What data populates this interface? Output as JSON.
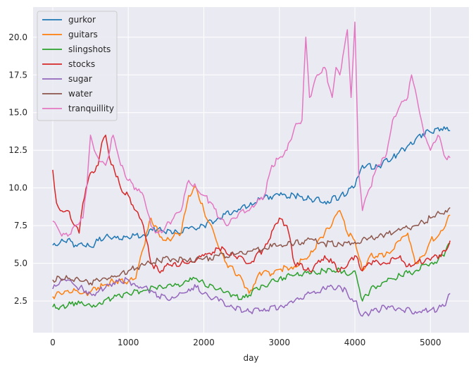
{
  "chart_data": {
    "type": "line",
    "title": "",
    "xlabel": "day",
    "ylabel": "",
    "xlim": [
      -260,
      5510
    ],
    "ylim": [
      0.4,
      22.0
    ],
    "xticks": [
      0,
      1000,
      2000,
      3000,
      4000,
      5000
    ],
    "xtick_labels": [
      "0",
      "1000",
      "2000",
      "3000",
      "4000",
      "5000"
    ],
    "yticks": [
      2.5,
      5.0,
      7.5,
      10.0,
      12.5,
      15.0,
      17.5,
      20.0
    ],
    "ytick_labels": [
      "2.5",
      "5.0",
      "7.5",
      "10.0",
      "12.5",
      "15.0",
      "17.5",
      "20.0"
    ],
    "grid": true,
    "background": "#eaeaf2",
    "legend_position": "upper left",
    "series": [
      {
        "name": "gurkor",
        "color": "#1f77b4",
        "x": [
          0,
          100,
          200,
          300,
          400,
          500,
          600,
          700,
          800,
          900,
          1000,
          1200,
          1400,
          1600,
          1800,
          2000,
          2200,
          2400,
          2600,
          2800,
          3000,
          3200,
          3400,
          3600,
          3800,
          4000,
          4050,
          4100,
          4300,
          4500,
          4700,
          4800,
          4900,
          5000,
          5100,
          5200,
          5260
        ],
        "y": [
          6.2,
          6.4,
          6.6,
          6.2,
          6.2,
          6.1,
          6.5,
          6.8,
          6.7,
          6.6,
          6.7,
          6.9,
          7.3,
          7.0,
          7.3,
          7.5,
          8.0,
          8.5,
          8.8,
          9.4,
          9.5,
          9.5,
          9.3,
          9.1,
          9.4,
          10.1,
          10.8,
          11.5,
          11.4,
          12.0,
          12.8,
          13.2,
          13.6,
          13.7,
          14.0,
          13.9,
          13.8
        ]
      },
      {
        "name": "guitars",
        "color": "#ff7f0e",
        "x": [
          0,
          100,
          200,
          300,
          400,
          500,
          600,
          700,
          800,
          900,
          1000,
          1100,
          1200,
          1300,
          1400,
          1500,
          1600,
          1700,
          1800,
          1900,
          2000,
          2100,
          2200,
          2300,
          2400,
          2500,
          2600,
          2700,
          2800,
          2900,
          3000,
          3200,
          3400,
          3600,
          3800,
          3900,
          4000,
          4100,
          4200,
          4400,
          4600,
          4700,
          4800,
          4900,
          5000,
          5100,
          5200,
          5260
        ],
        "y": [
          2.8,
          3.0,
          3.2,
          3.2,
          3.0,
          3.1,
          3.4,
          3.6,
          3.8,
          3.9,
          3.8,
          4.0,
          6.0,
          8.0,
          7.0,
          6.5,
          6.8,
          7.0,
          9.5,
          10.0,
          8.5,
          7.5,
          6.0,
          5.0,
          4.5,
          4.0,
          3.0,
          4.0,
          4.5,
          4.3,
          4.6,
          4.8,
          5.5,
          7.0,
          8.5,
          7.0,
          6.5,
          4.5,
          5.5,
          5.5,
          6.5,
          7.0,
          5.0,
          5.5,
          6.5,
          6.8,
          7.5,
          8.2
        ]
      },
      {
        "name": "slingshots",
        "color": "#2ca02c",
        "x": [
          0,
          100,
          200,
          300,
          400,
          500,
          600,
          700,
          800,
          900,
          1000,
          1200,
          1400,
          1600,
          1800,
          1900,
          2000,
          2200,
          2400,
          2500,
          2600,
          2700,
          2800,
          3000,
          3200,
          3400,
          3600,
          3800,
          3900,
          4000,
          4100,
          4200,
          4400,
          4600,
          4800,
          5000,
          5100,
          5200,
          5260
        ],
        "y": [
          2.1,
          2.1,
          2.2,
          2.4,
          2.3,
          2.2,
          2.3,
          2.6,
          2.7,
          2.8,
          3.0,
          3.2,
          3.5,
          3.5,
          3.8,
          4.0,
          3.7,
          3.3,
          2.9,
          2.6,
          2.9,
          3.4,
          3.5,
          4.0,
          4.2,
          4.3,
          4.5,
          4.6,
          4.2,
          4.5,
          2.5,
          3.2,
          3.8,
          4.2,
          4.5,
          5.0,
          5.2,
          5.8,
          6.3
        ]
      },
      {
        "name": "stocks",
        "color": "#d62728",
        "x": [
          0,
          50,
          100,
          200,
          300,
          350,
          400,
          500,
          600,
          650,
          700,
          750,
          800,
          900,
          1000,
          1100,
          1150,
          1200,
          1300,
          1400,
          1600,
          1800,
          2000,
          2200,
          2400,
          2600,
          2800,
          3000,
          3100,
          3200,
          3400,
          3600,
          3800,
          4000,
          4100,
          4200,
          4400,
          4600,
          4700,
          4800,
          5000,
          5200,
          5260
        ],
        "y": [
          11.2,
          9.0,
          8.5,
          8.5,
          7.5,
          7.0,
          9.0,
          11.0,
          11.5,
          13.0,
          13.5,
          12.0,
          11.5,
          10.0,
          9.5,
          8.5,
          8.0,
          7.5,
          5.0,
          4.5,
          5.0,
          5.0,
          5.5,
          6.0,
          5.5,
          5.0,
          6.0,
          8.0,
          7.5,
          5.0,
          4.5,
          5.5,
          4.5,
          5.5,
          4.5,
          5.0,
          5.0,
          5.5,
          4.8,
          5.0,
          5.2,
          5.8,
          6.5
        ]
      },
      {
        "name": "sugar",
        "color": "#9467bd",
        "x": [
          0,
          100,
          200,
          300,
          400,
          500,
          600,
          700,
          800,
          900,
          1000,
          1100,
          1200,
          1300,
          1400,
          1600,
          1800,
          1900,
          2000,
          2200,
          2400,
          2600,
          2800,
          3000,
          3200,
          3400,
          3600,
          3800,
          3900,
          4000,
          4100,
          4200,
          4400,
          4600,
          4800,
          5000,
          5100,
          5200,
          5260
        ],
        "y": [
          3.3,
          3.8,
          3.9,
          3.5,
          3.3,
          3.0,
          3.1,
          3.4,
          3.7,
          3.8,
          3.9,
          3.5,
          3.4,
          3.2,
          2.8,
          2.7,
          3.3,
          3.4,
          3.0,
          2.5,
          2.0,
          1.8,
          2.0,
          2.1,
          2.5,
          3.0,
          3.3,
          3.5,
          3.0,
          2.5,
          1.5,
          1.7,
          2.1,
          2.0,
          1.8,
          1.9,
          2.0,
          2.2,
          3.0
        ]
      },
      {
        "name": "water",
        "color": "#8c564b",
        "x": [
          0,
          100,
          200,
          300,
          400,
          500,
          600,
          700,
          800,
          900,
          1000,
          1200,
          1400,
          1600,
          1800,
          2000,
          2200,
          2400,
          2600,
          2800,
          3000,
          3200,
          3400,
          3600,
          3800,
          4000,
          4200,
          4400,
          4600,
          4800,
          5000,
          5200,
          5260
        ],
        "y": [
          3.9,
          4.0,
          4.0,
          4.0,
          3.8,
          3.7,
          3.9,
          4.0,
          4.1,
          4.3,
          4.5,
          4.9,
          5.2,
          5.3,
          5.2,
          5.3,
          5.5,
          5.6,
          5.8,
          6.0,
          6.2,
          6.3,
          6.6,
          6.3,
          6.3,
          6.4,
          6.7,
          6.9,
          7.2,
          7.5,
          8.0,
          8.5,
          8.7
        ]
      },
      {
        "name": "tranquillity",
        "color": "#e377c2",
        "x": [
          0,
          50,
          100,
          200,
          300,
          400,
          450,
          500,
          550,
          600,
          700,
          800,
          900,
          1000,
          1100,
          1200,
          1300,
          1400,
          1500,
          1600,
          1700,
          1800,
          1900,
          2000,
          2100,
          2200,
          2300,
          2400,
          2500,
          2600,
          2700,
          2800,
          2900,
          3000,
          3100,
          3200,
          3300,
          3350,
          3400,
          3500,
          3600,
          3700,
          3750,
          3800,
          3900,
          3950,
          4000,
          4050,
          4100,
          4200,
          4300,
          4400,
          4500,
          4600,
          4700,
          4750,
          4800,
          4900,
          5000,
          5100,
          5200,
          5260
        ],
        "y": [
          7.8,
          7.5,
          7.0,
          6.8,
          7.5,
          8.0,
          10.0,
          13.5,
          12.5,
          12.0,
          11.5,
          13.5,
          11.5,
          10.5,
          10.0,
          9.5,
          7.5,
          7.0,
          7.5,
          8.0,
          8.5,
          10.5,
          10.0,
          9.5,
          9.0,
          8.0,
          7.5,
          8.0,
          8.5,
          8.5,
          9.0,
          9.5,
          11.5,
          12.0,
          12.5,
          14.0,
          14.5,
          20.0,
          16.0,
          17.5,
          18.0,
          16.0,
          18.0,
          17.5,
          20.5,
          16.0,
          21.0,
          11.0,
          8.5,
          10.0,
          11.5,
          12.0,
          14.5,
          15.5,
          16.0,
          17.5,
          16.5,
          14.0,
          12.5,
          13.5,
          12.0,
          12.0
        ]
      }
    ]
  }
}
